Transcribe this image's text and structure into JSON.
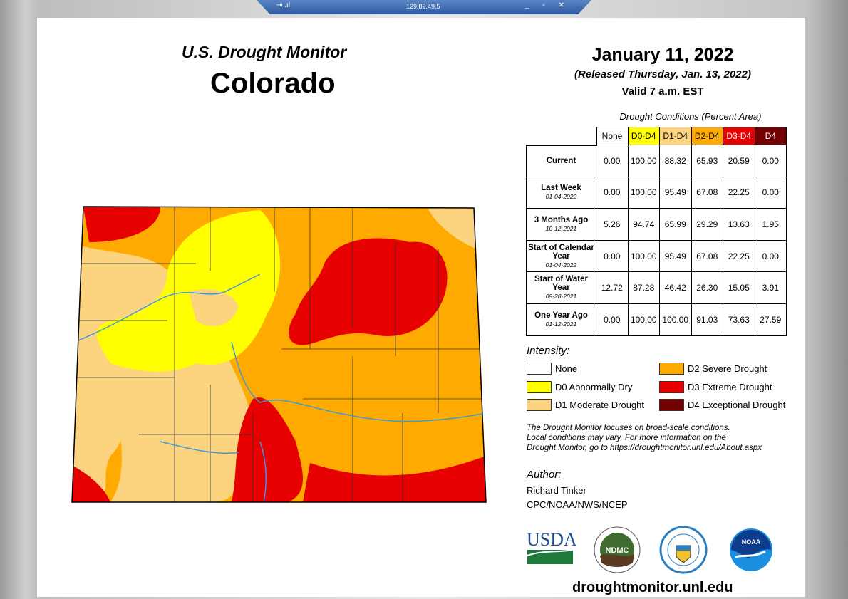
{
  "window": {
    "address": "129.82.49.5",
    "left_icons": "⇥ .ıl",
    "controls": "_ ▫ ✕"
  },
  "header": {
    "product": "U.S. Drought Monitor",
    "region": "Colorado",
    "date": "January 11, 2022",
    "released": "(Released Thursday, Jan. 13, 2022)",
    "valid": "Valid 7 a.m. EST"
  },
  "table": {
    "caption": "Drought Conditions (Percent Area)",
    "columns": [
      {
        "label": "None",
        "bg": "#ffffff",
        "fg": "#000000"
      },
      {
        "label": "D0-D4",
        "bg": "#ffff00",
        "fg": "#000000"
      },
      {
        "label": "D1-D4",
        "bg": "#fcd37f",
        "fg": "#000000"
      },
      {
        "label": "D2-D4",
        "bg": "#ffaa00",
        "fg": "#000000"
      },
      {
        "label": "D3-D4",
        "bg": "#e60000",
        "fg": "#ffffff"
      },
      {
        "label": "D4",
        "bg": "#730000",
        "fg": "#ffffff"
      }
    ],
    "rows": [
      {
        "label": "Current",
        "date": "",
        "values": [
          "0.00",
          "100.00",
          "88.32",
          "65.93",
          "20.59",
          "0.00"
        ]
      },
      {
        "label": "Last Week",
        "date": "01-04-2022",
        "values": [
          "0.00",
          "100.00",
          "95.49",
          "67.08",
          "22.25",
          "0.00"
        ]
      },
      {
        "label": "3 Months Ago",
        "date": "10-12-2021",
        "values": [
          "5.26",
          "94.74",
          "65.99",
          "29.29",
          "13.63",
          "1.95"
        ]
      },
      {
        "label": "Start of Calendar Year",
        "date": "01-04-2022",
        "values": [
          "0.00",
          "100.00",
          "95.49",
          "67.08",
          "22.25",
          "0.00"
        ]
      },
      {
        "label": "Start of Water Year",
        "date": "09-28-2021",
        "values": [
          "12.72",
          "87.28",
          "46.42",
          "26.30",
          "15.05",
          "3.91"
        ]
      },
      {
        "label": "One Year Ago",
        "date": "01-12-2021",
        "values": [
          "0.00",
          "100.00",
          "100.00",
          "91.03",
          "73.63",
          "27.59"
        ]
      }
    ]
  },
  "legend": {
    "title": "Intensity:",
    "items": [
      {
        "label": "None",
        "color": "#ffffff"
      },
      {
        "label": "D0 Abnormally Dry",
        "color": "#ffff00"
      },
      {
        "label": "D1 Moderate Drought",
        "color": "#fcd37f"
      },
      {
        "label": "D2 Severe Drought",
        "color": "#ffaa00"
      },
      {
        "label": "D3 Extreme Drought",
        "color": "#e60000"
      },
      {
        "label": "D4 Exceptional Drought",
        "color": "#730000"
      }
    ]
  },
  "note": [
    "The Drought Monitor focuses on broad-scale conditions.",
    "Local conditions may vary. For more information on the",
    "Drought Monitor, go to https://droughtmonitor.unl.edu/About.aspx"
  ],
  "author": {
    "title": "Author:",
    "name": "Richard Tinker",
    "org": "CPC/NOAA/NWS/NCEP"
  },
  "logos": [
    {
      "name": "USDA"
    },
    {
      "name": "NDMC"
    },
    {
      "name": "Department of Commerce"
    },
    {
      "name": "NOAA"
    }
  ],
  "footer": {
    "site": "droughtmonitor.unl.edu"
  },
  "map": {
    "river_color": "#3a9ad9"
  }
}
